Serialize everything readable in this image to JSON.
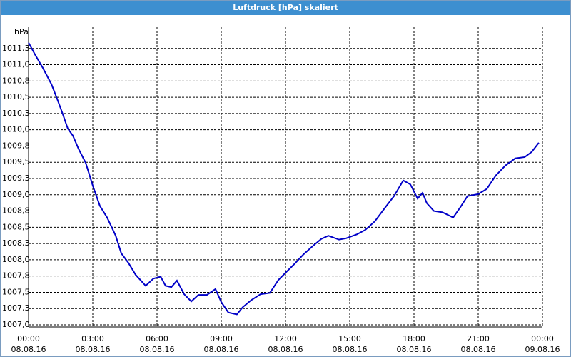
{
  "chart_data": {
    "type": "line",
    "title": "Luftdruck [hPa] skaliert",
    "y_label": "hPa",
    "xlim": [
      0,
      24
    ],
    "xticks": [
      {
        "value": 0,
        "label": "00:00"
      },
      {
        "value": 3,
        "label": "03:00"
      },
      {
        "value": 6,
        "label": "06:00"
      },
      {
        "value": 9,
        "label": "09:00"
      },
      {
        "value": 12,
        "label": "12:00"
      },
      {
        "value": 15,
        "label": "15:00"
      },
      {
        "value": 18,
        "label": "18:00"
      },
      {
        "value": 21,
        "label": "21:00"
      },
      {
        "value": 24,
        "label": "00:00"
      }
    ],
    "xtick_dates": [
      "08.08.16",
      "08.08.16",
      "08.08.16",
      "08.08.16",
      "08.08.16",
      "08.08.16",
      "08.08.16",
      "08.08.16",
      "09.08.16"
    ],
    "ylim": [
      1007,
      1011.5
    ],
    "yticks": [
      {
        "value": 1007,
        "label": "1007,0"
      },
      {
        "value": 1007.25,
        "label": "1007,3"
      },
      {
        "value": 1007.5,
        "label": "1007,5"
      },
      {
        "value": 1007.75,
        "label": "1007,8"
      },
      {
        "value": 1008,
        "label": "1008,0"
      },
      {
        "value": 1008.25,
        "label": "1008,3"
      },
      {
        "value": 1008.5,
        "label": "1008,5"
      },
      {
        "value": 1008.75,
        "label": "1008,8"
      },
      {
        "value": 1009,
        "label": "1009,0"
      },
      {
        "value": 1009.25,
        "label": "1009,3"
      },
      {
        "value": 1009.5,
        "label": "1009,5"
      },
      {
        "value": 1009.75,
        "label": "1009,8"
      },
      {
        "value": 1010,
        "label": "1010,0"
      },
      {
        "value": 1010.25,
        "label": "1010,3"
      },
      {
        "value": 1010.5,
        "label": "1010,5"
      },
      {
        "value": 1010.75,
        "label": "1010,8"
      },
      {
        "value": 1011,
        "label": "1011,0"
      },
      {
        "value": 1011.25,
        "label": "1011,3"
      }
    ],
    "grid": true,
    "x": [
      0,
      0.33,
      0.67,
      1.07,
      1.33,
      1.6,
      1.83,
      2.07,
      2.33,
      2.67,
      3.0,
      3.33,
      3.67,
      4.07,
      4.33,
      4.67,
      5.0,
      5.47,
      5.83,
      6.17,
      6.4,
      6.67,
      6.93,
      7.27,
      7.6,
      7.93,
      8.33,
      8.73,
      9.0,
      9.33,
      9.73,
      10.0,
      10.4,
      10.83,
      11.27,
      11.67,
      12.0,
      12.4,
      12.83,
      13.27,
      13.67,
      14.0,
      14.5,
      14.83,
      15.33,
      15.73,
      16.17,
      16.67,
      17.07,
      17.5,
      17.83,
      18.17,
      18.4,
      18.6,
      18.93,
      19.33,
      19.83,
      20.17,
      20.5,
      21.0,
      21.4,
      21.83,
      22.27,
      22.73,
      23.17,
      23.5,
      23.83
    ],
    "series": [
      {
        "color": "#0000c8",
        "values": [
          1011.34,
          1011.14,
          1010.95,
          1010.7,
          1010.48,
          1010.24,
          1010.02,
          1009.91,
          1009.71,
          1009.49,
          1009.14,
          1008.83,
          1008.65,
          1008.37,
          1008.1,
          1007.95,
          1007.77,
          1007.6,
          1007.71,
          1007.74,
          1007.6,
          1007.58,
          1007.68,
          1007.47,
          1007.36,
          1007.46,
          1007.46,
          1007.55,
          1007.35,
          1007.19,
          1007.16,
          1007.27,
          1007.38,
          1007.47,
          1007.49,
          1007.69,
          1007.8,
          1007.93,
          1008.08,
          1008.21,
          1008.32,
          1008.37,
          1008.31,
          1008.33,
          1008.39,
          1008.46,
          1008.59,
          1008.81,
          1008.98,
          1009.22,
          1009.16,
          1008.94,
          1009.03,
          1008.87,
          1008.75,
          1008.73,
          1008.65,
          1008.81,
          1008.98,
          1009.01,
          1009.09,
          1009.3,
          1009.45,
          1009.56,
          1009.58,
          1009.66,
          1009.8
        ]
      }
    ]
  }
}
